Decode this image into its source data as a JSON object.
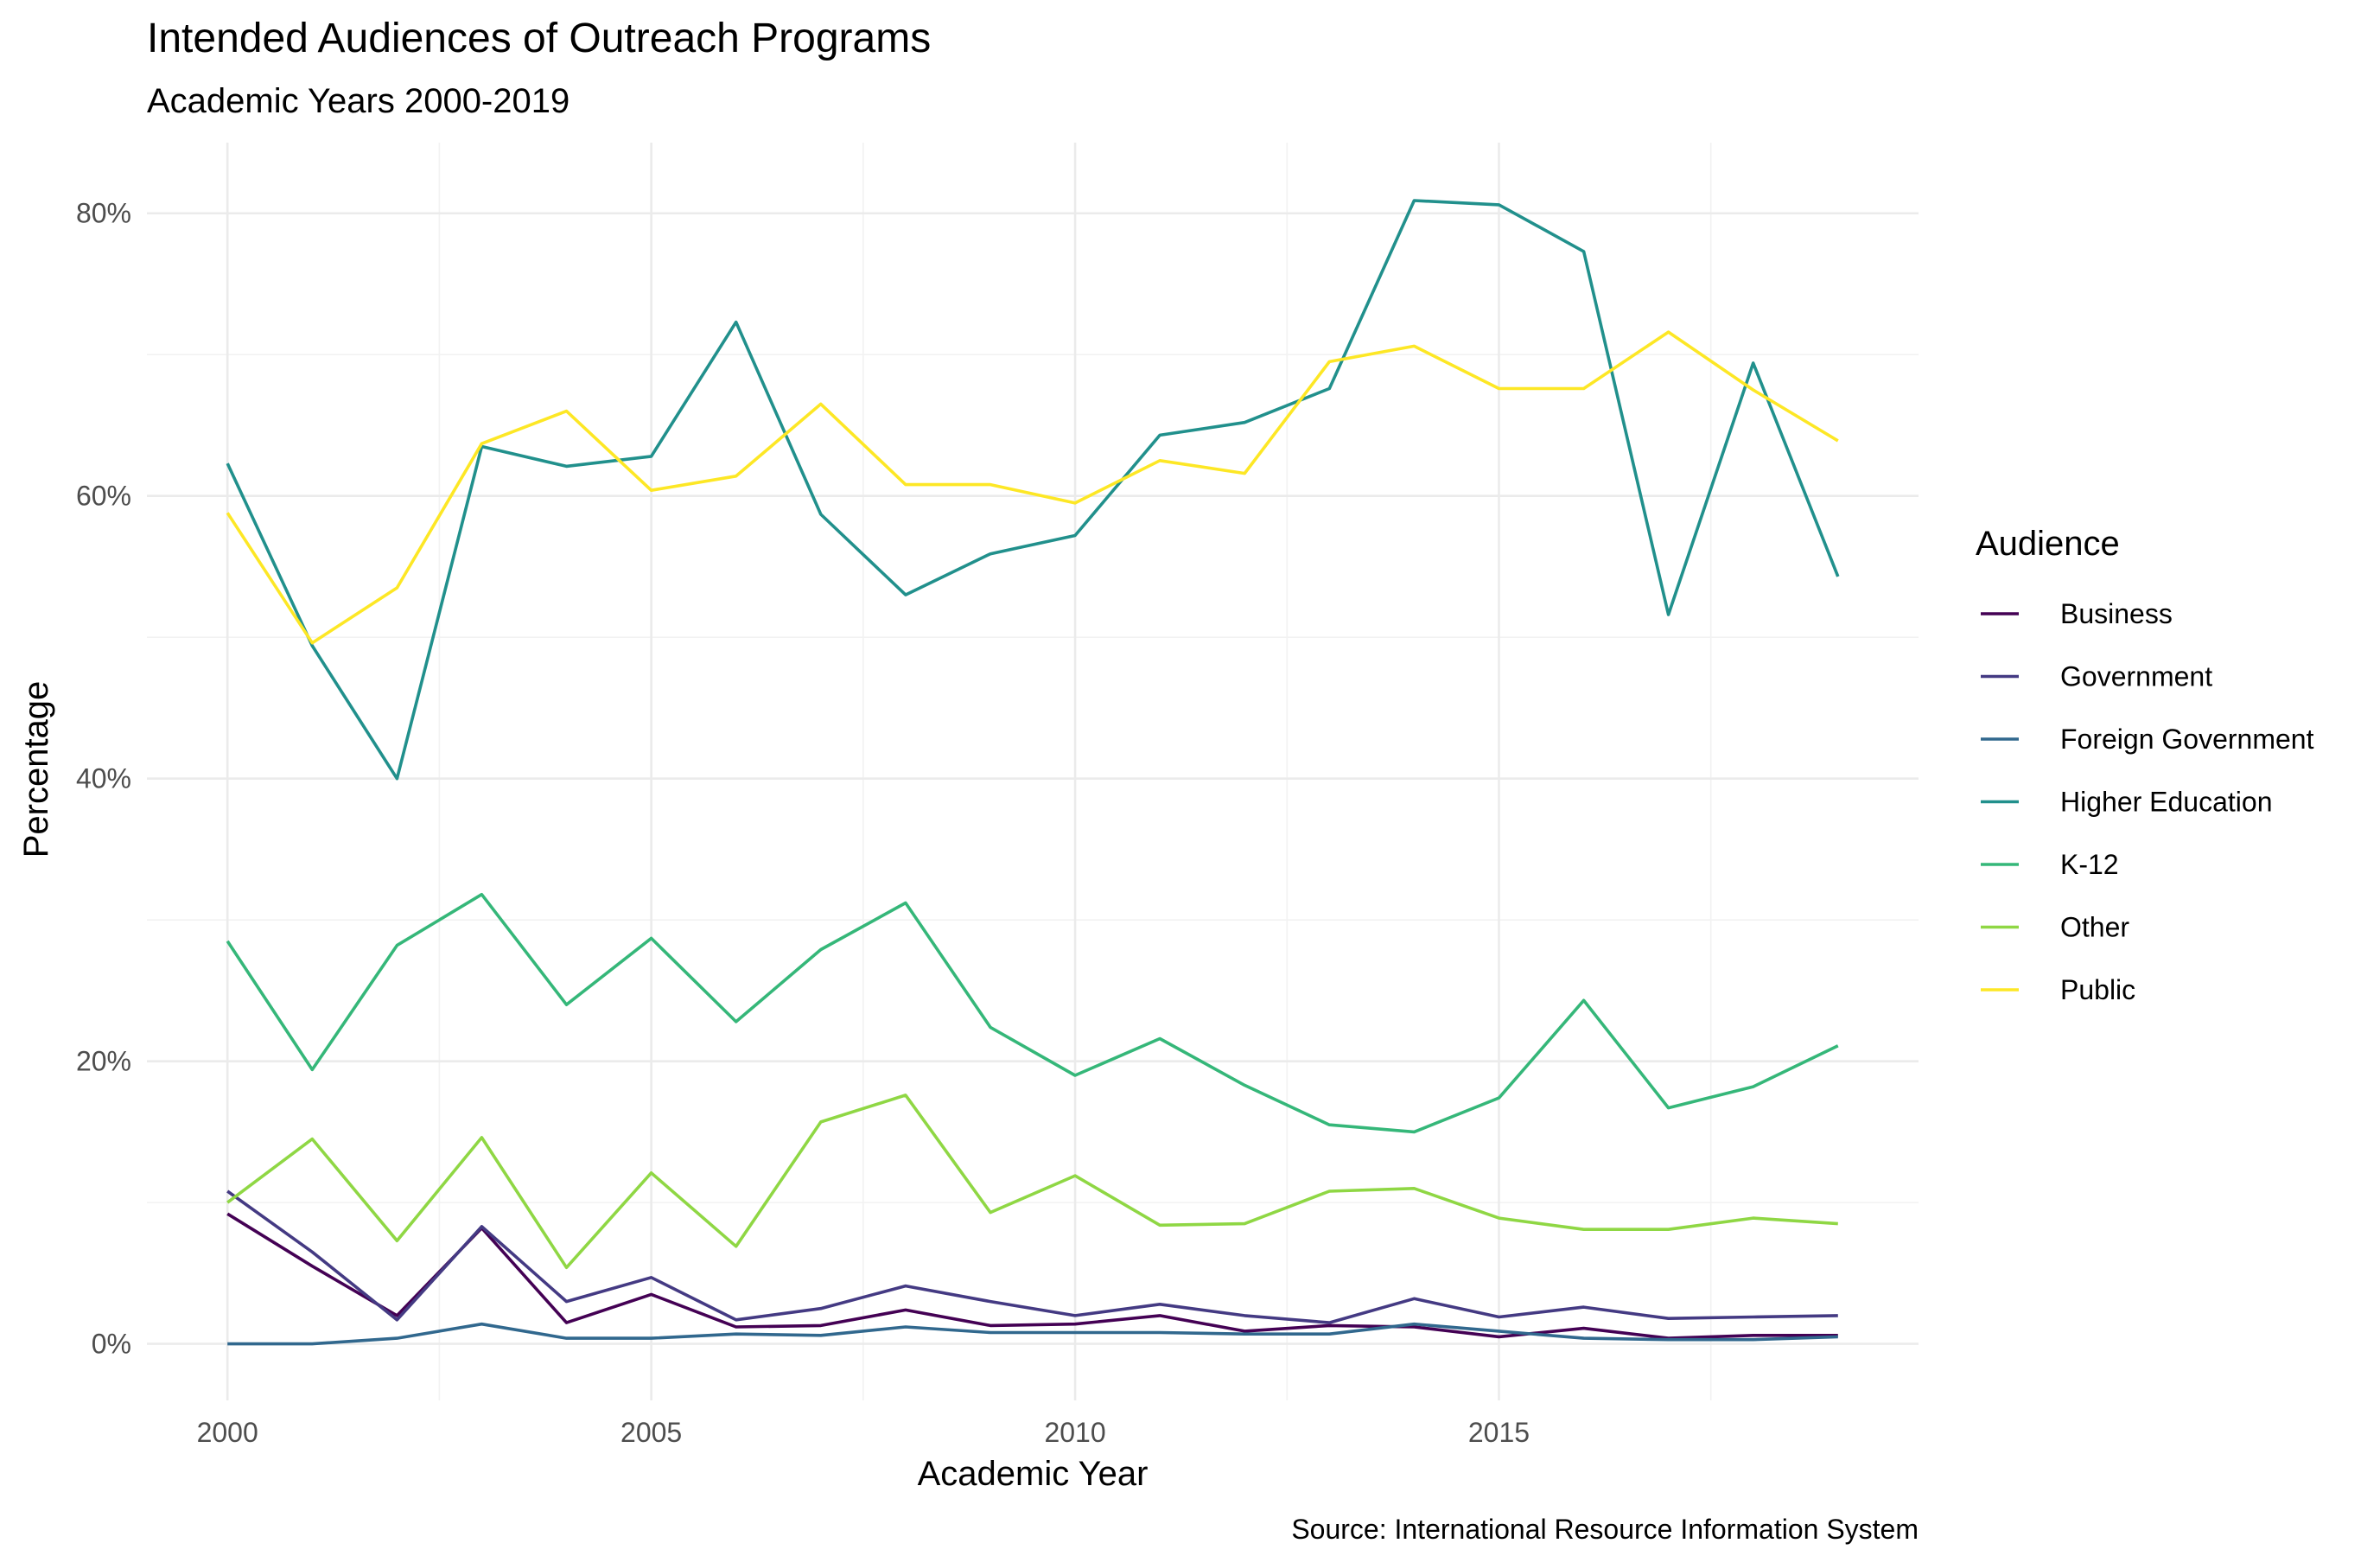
{
  "chart_data": {
    "type": "line",
    "title": "Intended Audiences of Outreach Programs",
    "subtitle": "Academic Years 2000-2019",
    "xlabel": "Academic Year",
    "ylabel": "Percentage",
    "caption": "Source: International Resource Information System",
    "legend_title": "Audience",
    "legend_position": "right",
    "grid": true,
    "x": [
      2000,
      2001,
      2002,
      2003,
      2004,
      2005,
      2006,
      2007,
      2008,
      2009,
      2010,
      2011,
      2012,
      2013,
      2014,
      2015,
      2016,
      2017,
      2018,
      2019
    ],
    "xlim": [
      1999.05,
      2019.95
    ],
    "ylim": [
      -0.04,
      0.85
    ],
    "x_ticks": [
      2000,
      2005,
      2010,
      2015
    ],
    "x_tick_labels": [
      "2000",
      "2005",
      "2010",
      "2015"
    ],
    "y_ticks": [
      0,
      0.2,
      0.4,
      0.6,
      0.8
    ],
    "y_tick_labels": [
      "0%",
      "20%",
      "40%",
      "60%",
      "80%"
    ],
    "series": [
      {
        "name": "Business",
        "color": "#440154",
        "values": [
          0.092,
          0.055,
          0.02,
          0.082,
          0.015,
          0.035,
          0.012,
          0.013,
          0.024,
          0.013,
          0.014,
          0.02,
          0.009,
          0.013,
          0.012,
          0.005,
          0.011,
          0.004,
          0.006,
          0.006
        ]
      },
      {
        "name": "Government",
        "color": "#443A83",
        "values": [
          0.108,
          0.065,
          0.017,
          0.083,
          0.03,
          0.047,
          0.017,
          0.025,
          0.041,
          0.03,
          0.02,
          0.028,
          0.02,
          0.015,
          0.032,
          0.019,
          0.026,
          0.018,
          0.019,
          0.02
        ]
      },
      {
        "name": "Foreign Government",
        "color": "#31688E",
        "values": [
          0.0,
          0.0,
          0.004,
          0.014,
          0.004,
          0.004,
          0.007,
          0.006,
          0.012,
          0.008,
          0.008,
          0.008,
          0.007,
          0.007,
          0.014,
          0.009,
          0.004,
          0.003,
          0.003,
          0.005
        ]
      },
      {
        "name": "Higher Education",
        "color": "#21908C",
        "values": [
          0.623,
          0.494,
          0.4,
          0.635,
          0.621,
          0.628,
          0.723,
          0.587,
          0.53,
          0.559,
          0.572,
          0.643,
          0.652,
          0.676,
          0.809,
          0.806,
          0.773,
          0.516,
          0.694,
          0.543
        ]
      },
      {
        "name": "K-12",
        "color": "#35B779",
        "values": [
          0.285,
          0.194,
          0.282,
          0.318,
          0.24,
          0.287,
          0.228,
          0.279,
          0.312,
          0.224,
          0.19,
          0.216,
          0.183,
          0.155,
          0.15,
          0.174,
          0.243,
          0.167,
          0.182,
          0.211
        ]
      },
      {
        "name": "Other",
        "color": "#8FD744",
        "values": [
          0.1,
          0.145,
          0.073,
          0.146,
          0.054,
          0.121,
          0.069,
          0.157,
          0.176,
          0.093,
          0.119,
          0.084,
          0.085,
          0.108,
          0.11,
          0.089,
          0.081,
          0.081,
          0.089,
          0.085
        ]
      },
      {
        "name": "Public",
        "color": "#FDE725",
        "values": [
          0.588,
          0.496,
          0.535,
          0.637,
          0.66,
          0.604,
          0.614,
          0.665,
          0.608,
          0.608,
          0.595,
          0.625,
          0.616,
          0.695,
          0.706,
          0.676,
          0.676,
          0.716,
          0.675,
          0.639
        ]
      }
    ]
  }
}
